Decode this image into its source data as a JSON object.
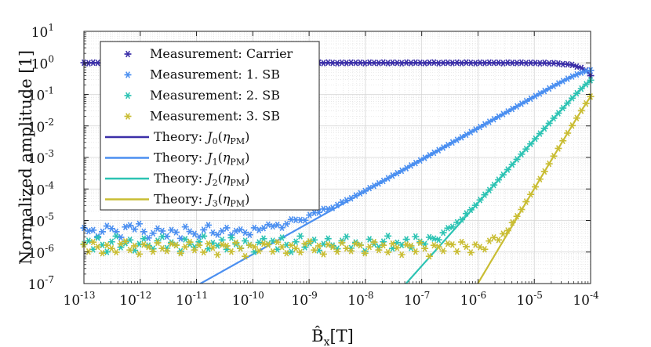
{
  "chart_data": {
    "type": "scatter",
    "title": "",
    "xlabel": "B̂",
    "xlabel_sub": "x",
    "xlabel_unit": "[T]",
    "ylabel": "Normalized amplitude [1]",
    "xscale": "log",
    "yscale": "log",
    "xlim": [
      1e-13,
      0.0001
    ],
    "ylim": [
      1e-07,
      10
    ],
    "grid": true,
    "legend_position": "top-left",
    "x_ticks": [
      {
        "base": "10",
        "exp": "-13"
      },
      {
        "base": "10",
        "exp": "-12"
      },
      {
        "base": "10",
        "exp": "-11"
      },
      {
        "base": "10",
        "exp": "-10"
      },
      {
        "base": "10",
        "exp": "-9"
      },
      {
        "base": "10",
        "exp": "-8"
      },
      {
        "base": "10",
        "exp": "-7"
      },
      {
        "base": "10",
        "exp": "-6"
      },
      {
        "base": "10",
        "exp": "-5"
      },
      {
        "base": "10",
        "exp": "-4"
      }
    ],
    "y_ticks": [
      {
        "base": "10",
        "exp": "1"
      },
      {
        "base": "10",
        "exp": "0"
      },
      {
        "base": "10",
        "exp": "-1"
      },
      {
        "base": "10",
        "exp": "-2"
      },
      {
        "base": "10",
        "exp": "-3"
      },
      {
        "base": "10",
        "exp": "-4"
      },
      {
        "base": "10",
        "exp": "-5"
      },
      {
        "base": "10",
        "exp": "-6"
      },
      {
        "base": "10",
        "exp": "-7"
      }
    ],
    "series": [
      {
        "name": "Measurement: Carrier",
        "kind": "marker",
        "color": "#3b2fa8",
        "model": "carrier",
        "noise": [
          0.01,
          -0.02,
          0.015,
          0.0,
          -0.01,
          0.02,
          -0.015,
          0.01,
          0.0,
          -0.02,
          0.02,
          -0.01,
          0.015,
          0.0,
          -0.015,
          0.01,
          0.02,
          -0.02,
          0.0,
          0.01,
          -0.01,
          0.015,
          -0.015,
          0.02,
          0.0,
          -0.02,
          0.01,
          -0.01,
          0.015,
          0.0
        ]
      },
      {
        "name": "Measurement: 1. SB",
        "kind": "marker",
        "color": "#4b8ff0",
        "model": "sb",
        "order": 1,
        "floor": 3.5e-06,
        "noise": [
          0.22,
          0.12,
          0.15,
          -0.05,
          0.1,
          0.28,
          0.2,
          0.1,
          -0.08,
          0.25,
          0.3,
          0.18,
          0.35,
          0.1,
          -0.1,
          0.05,
          0.2,
          0.12,
          -0.05,
          0.15,
          0.08,
          -0.12,
          0.25,
          0.1,
          0.02,
          -0.08,
          0.15,
          0.3,
          0.05,
          -0.02,
          0.1,
          0.2,
          -0.05,
          0.08,
          0.12,
          0.0,
          -0.1,
          0.15,
          0.05,
          0.1
        ]
      },
      {
        "name": "Measurement: 2. SB",
        "kind": "marker",
        "color": "#2cc3b3",
        "model": "sb",
        "order": 2,
        "floor": 1.6e-06,
        "noise": [
          0.05,
          0.15,
          -0.12,
          0.25,
          0.02,
          -0.2,
          0.12,
          0.3,
          -0.05,
          0.08,
          0.18,
          -0.15,
          0.05,
          0.22,
          0.0,
          -0.1,
          0.15,
          0.28,
          -0.08,
          0.1,
          0.02,
          -0.18,
          0.2,
          0.05,
          -0.05,
          0.12,
          0.3,
          -0.1,
          0.08,
          0.0,
          0.18,
          -0.12,
          0.25,
          0.05,
          -0.08,
          0.15,
          0.02,
          -0.2,
          0.1,
          0.22
        ]
      },
      {
        "name": "Measurement: 3. SB",
        "kind": "marker",
        "color": "#c9bd33",
        "model": "sb",
        "order": 3,
        "floor": 1.3e-06,
        "noise": [
          0.12,
          -0.1,
          0.2,
          0.05,
          -0.15,
          0.1,
          0.0,
          -0.12,
          0.15,
          0.22,
          -0.05,
          0.08,
          -0.18,
          0.12,
          0.05,
          -0.1,
          0.18,
          0.0,
          -0.08,
          0.15,
          0.1,
          -0.15,
          0.05,
          0.2,
          -0.05,
          0.1,
          -0.12,
          0.15,
          0.02,
          -0.2,
          0.12,
          0.08,
          -0.1,
          0.18,
          0.0,
          -0.25,
          0.1,
          0.05,
          -0.08,
          0.15
        ]
      },
      {
        "name": "Theory: J0(ηPM)",
        "label_main": "Theory:",
        "label_sym": "J",
        "label_sub": "0",
        "kind": "line",
        "color": "#3b2fa8",
        "order": 0
      },
      {
        "name": "Theory: J1(ηPM)",
        "label_main": "Theory:",
        "label_sym": "J",
        "label_sub": "1",
        "kind": "line",
        "color": "#4b8ff0",
        "order": 1
      },
      {
        "name": "Theory: J2(ηPM)",
        "label_main": "Theory:",
        "label_sym": "J",
        "label_sub": "2",
        "kind": "line",
        "color": "#2cc3b3",
        "order": 2
      },
      {
        "name": "Theory: J3(ηPM)",
        "label_main": "Theory:",
        "label_sym": "J",
        "label_sub": "3",
        "kind": "line",
        "color": "#c9bd33",
        "order": 3
      }
    ],
    "eta_per_tesla": 17000,
    "legend_arg": "η",
    "legend_arg_sub": "PM"
  }
}
